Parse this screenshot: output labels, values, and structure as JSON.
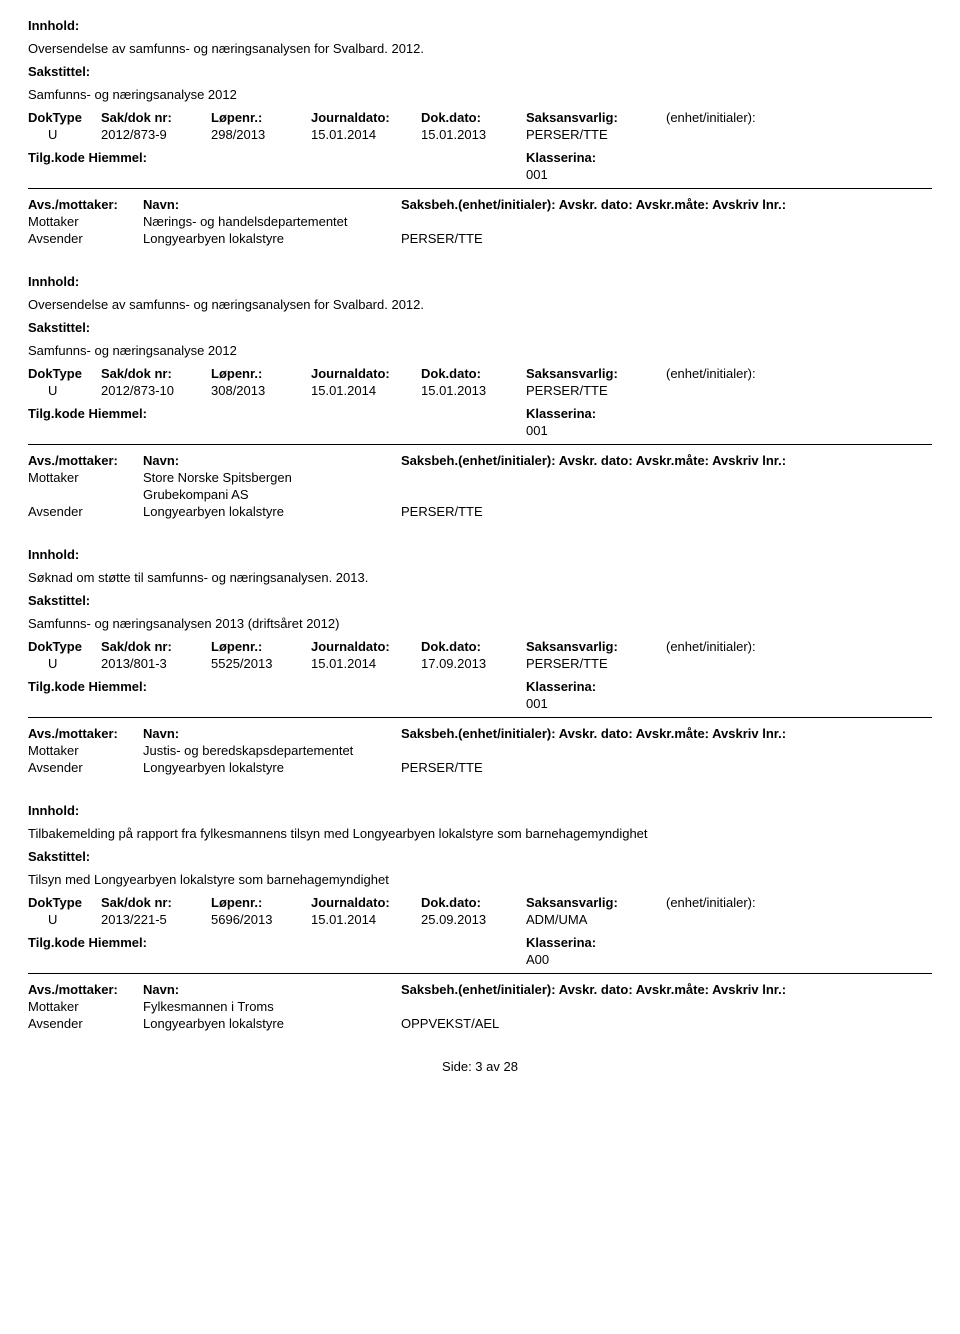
{
  "labels": {
    "innhold": "Innhold:",
    "sakstittel": "Sakstittel:",
    "doktype": "DokType",
    "sakdoknr": "Sak/dok nr:",
    "lopenr": "Løpenr.:",
    "journaldato": "Journaldato:",
    "dokdato": "Dok.dato:",
    "saksansvarlig": "Saksansvarlig:",
    "enhet": "(enhet/initialer):",
    "tilgkode": "Tilg.kode",
    "hjemmel": "Hiemmel:",
    "klassering": "Klasserina:",
    "avsmottaker": "Avs./mottaker:",
    "navn": "Navn:",
    "saksbeh_enhet": "Saksbeh.(enhet/initialer):",
    "avskr_dato": "Avskr. dato:",
    "avskr_mate": "Avskr.måte:",
    "avskriv_lnr": "Avskriv lnr.:",
    "mottaker": "Mottaker",
    "avsender": "Avsender"
  },
  "records": [
    {
      "innhold": "Oversendelse av samfunns- og næringsanalysen for Svalbard. 2012.",
      "sakstittel": "Samfunns- og næringsanalyse 2012",
      "doktype": "U",
      "sakdoknr": "2012/873-9",
      "lopenr": "298/2013",
      "journaldato": "15.01.2014",
      "dokdato": "15.01.2013",
      "saksansvarlig": "PERSER/TTE",
      "klasse": "001",
      "parties": [
        {
          "role": "Mottaker",
          "name": "Nærings- og handelsdepartementet",
          "name2": "",
          "saksbeh": ""
        },
        {
          "role": "Avsender",
          "name": "Longyearbyen lokalstyre",
          "name2": "",
          "saksbeh": "PERSER/TTE"
        }
      ]
    },
    {
      "innhold": "Oversendelse av samfunns- og næringsanalysen for Svalbard. 2012.",
      "sakstittel": "Samfunns- og næringsanalyse 2012",
      "doktype": "U",
      "sakdoknr": "2012/873-10",
      "lopenr": "308/2013",
      "journaldato": "15.01.2014",
      "dokdato": "15.01.2013",
      "saksansvarlig": "PERSER/TTE",
      "klasse": "001",
      "parties": [
        {
          "role": "Mottaker",
          "name": "Store Norske Spitsbergen",
          "name2": "Grubekompani AS",
          "saksbeh": ""
        },
        {
          "role": "Avsender",
          "name": "Longyearbyen lokalstyre",
          "name2": "",
          "saksbeh": "PERSER/TTE"
        }
      ]
    },
    {
      "innhold": "Søknad om støtte til samfunns- og næringsanalysen. 2013.",
      "sakstittel": "Samfunns- og næringsanalysen 2013 (driftsåret 2012)",
      "doktype": "U",
      "sakdoknr": "2013/801-3",
      "lopenr": "5525/2013",
      "journaldato": "15.01.2014",
      "dokdato": "17.09.2013",
      "saksansvarlig": "PERSER/TTE",
      "klasse": "001",
      "parties": [
        {
          "role": "Mottaker",
          "name": "Justis- og beredskapsdepartementet",
          "name2": "",
          "saksbeh": ""
        },
        {
          "role": "Avsender",
          "name": "Longyearbyen lokalstyre",
          "name2": "",
          "saksbeh": "PERSER/TTE"
        }
      ]
    },
    {
      "innhold": "Tilbakemelding på rapport fra fylkesmannens tilsyn med Longyearbyen lokalstyre som barnehagemyndighet",
      "sakstittel": "Tilsyn med Longyearbyen lokalstyre som barnehagemyndighet",
      "doktype": "U",
      "sakdoknr": "2013/221-5",
      "lopenr": "5696/2013",
      "journaldato": "15.01.2014",
      "dokdato": "25.09.2013",
      "saksansvarlig": "ADM/UMA",
      "klasse": "A00",
      "parties": [
        {
          "role": "Mottaker",
          "name": "Fylkesmannen i Troms",
          "name2": "",
          "saksbeh": ""
        },
        {
          "role": "Avsender",
          "name": "Longyearbyen lokalstyre",
          "name2": "",
          "saksbeh": "OPPVEKST/AEL"
        }
      ]
    }
  ],
  "footer": "Side: 3 av 28"
}
